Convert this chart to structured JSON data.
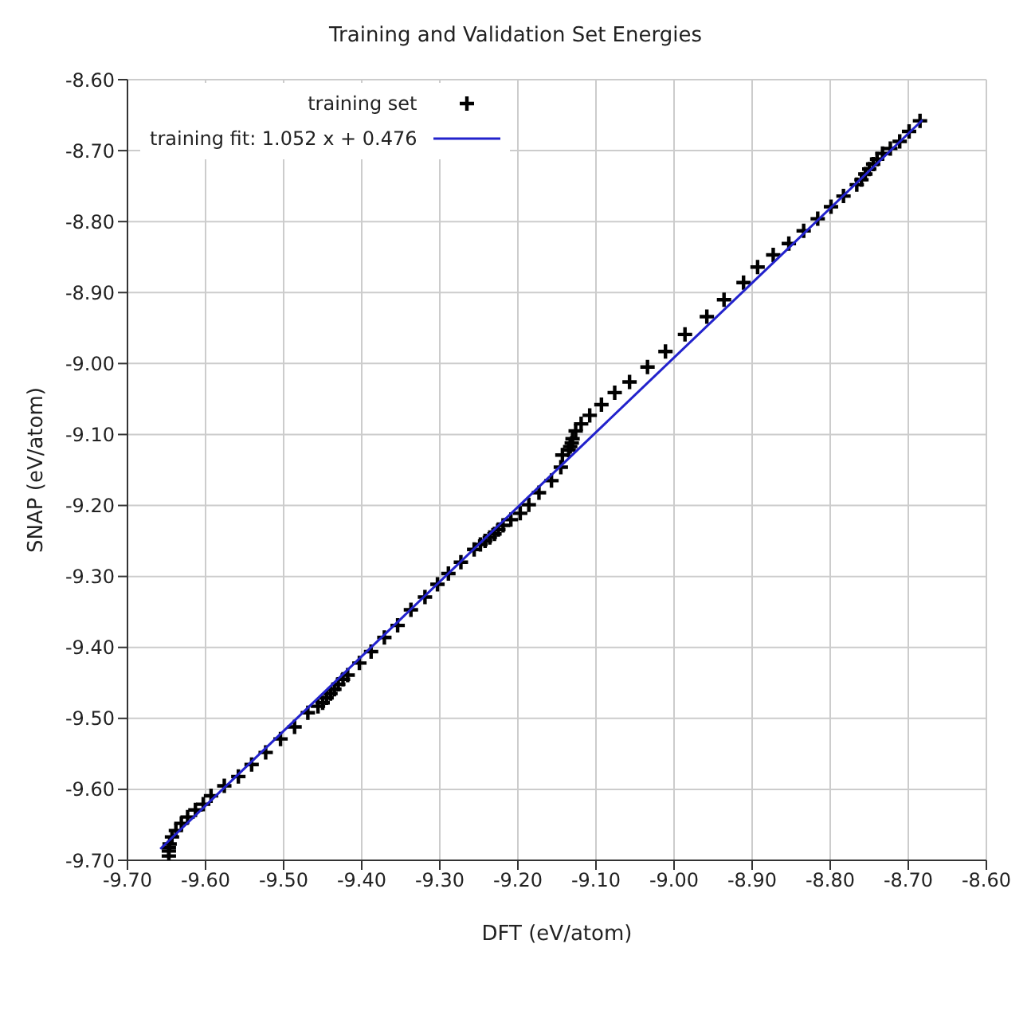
{
  "chart_data": {
    "type": "scatter",
    "title": "Training and Validation Set Energies",
    "xlabel": "DFT (eV/atom)",
    "ylabel": "SNAP (eV/atom)",
    "xlim": [
      -9.7,
      -8.6
    ],
    "ylim": [
      -9.7,
      -8.6
    ],
    "xticks": [
      {
        "value": -9.7,
        "label": "-9.70"
      },
      {
        "value": -9.6,
        "label": "-9.60"
      },
      {
        "value": -9.5,
        "label": "-9.50"
      },
      {
        "value": -9.4,
        "label": "-9.40"
      },
      {
        "value": -9.3,
        "label": "-9.30"
      },
      {
        "value": -9.2,
        "label": "-9.20"
      },
      {
        "value": -9.1,
        "label": "-9.10"
      },
      {
        "value": -9.0,
        "label": "-9.00"
      },
      {
        "value": -8.9,
        "label": "-8.90"
      },
      {
        "value": -8.8,
        "label": "-8.80"
      },
      {
        "value": -8.7,
        "label": "-8.70"
      },
      {
        "value": -8.6,
        "label": "-8.60"
      }
    ],
    "yticks": [
      {
        "value": -9.7,
        "label": "-9.70"
      },
      {
        "value": -9.6,
        "label": "-9.60"
      },
      {
        "value": -9.5,
        "label": "-9.50"
      },
      {
        "value": -9.4,
        "label": "-9.40"
      },
      {
        "value": -9.3,
        "label": "-9.30"
      },
      {
        "value": -9.2,
        "label": "-9.20"
      },
      {
        "value": -9.1,
        "label": "-9.10"
      },
      {
        "value": -9.0,
        "label": "-9.00"
      },
      {
        "value": -8.9,
        "label": "-8.90"
      },
      {
        "value": -8.8,
        "label": "-8.80"
      },
      {
        "value": -8.7,
        "label": "-8.70"
      },
      {
        "value": -8.6,
        "label": "-8.60"
      }
    ],
    "grid": true,
    "legend": "top left",
    "series": [
      {
        "name": "training set",
        "type": "scatter",
        "marker": "cross",
        "color": "#000000",
        "x": [
          -9.647,
          -9.647,
          -9.647,
          -9.646,
          -9.643,
          -9.638,
          -9.631,
          -9.623,
          -9.613,
          -9.603,
          -9.593,
          -9.576,
          -9.558,
          -9.541,
          -9.523,
          -9.504,
          -9.486,
          -9.469,
          -9.456,
          -9.45,
          -9.445,
          -9.44,
          -9.435,
          -9.43,
          -9.424,
          -9.418,
          -9.403,
          -9.388,
          -9.371,
          -9.354,
          -9.337,
          -9.319,
          -9.303,
          -9.289,
          -9.273,
          -9.256,
          -9.248,
          -9.242,
          -9.236,
          -9.23,
          -9.225,
          -9.219,
          -9.209,
          -9.197,
          -9.186,
          -9.173,
          -9.157,
          -9.145,
          -9.143,
          -9.135,
          -9.133,
          -9.131,
          -9.13,
          -9.126,
          -9.119,
          -9.108,
          -9.093,
          -9.076,
          -9.057,
          -9.034,
          -9.011,
          -8.986,
          -8.958,
          -8.936,
          -8.911,
          -8.893,
          -8.873,
          -8.853,
          -8.834,
          -8.816,
          -8.799,
          -8.783,
          -8.766,
          -8.76,
          -8.755,
          -8.75,
          -8.745,
          -8.74,
          -8.733,
          -8.723,
          -8.711,
          -8.699,
          -8.685
        ],
        "values": [
          -9.694,
          -9.687,
          -9.682,
          -9.677,
          -9.667,
          -9.658,
          -9.648,
          -9.639,
          -9.629,
          -9.621,
          -9.609,
          -9.595,
          -9.582,
          -9.565,
          -9.548,
          -9.529,
          -9.512,
          -9.492,
          -9.483,
          -9.478,
          -9.471,
          -9.465,
          -9.459,
          -9.452,
          -9.445,
          -9.439,
          -9.422,
          -9.406,
          -9.386,
          -9.369,
          -9.347,
          -9.329,
          -9.311,
          -9.296,
          -9.28,
          -9.262,
          -9.255,
          -9.25,
          -9.245,
          -9.24,
          -9.234,
          -9.228,
          -9.22,
          -9.211,
          -9.199,
          -9.182,
          -9.165,
          -9.146,
          -9.129,
          -9.122,
          -9.117,
          -9.112,
          -9.106,
          -9.095,
          -9.085,
          -9.073,
          -9.058,
          -9.041,
          -9.026,
          -9.005,
          -8.983,
          -8.959,
          -8.934,
          -8.91,
          -8.886,
          -8.864,
          -8.847,
          -8.831,
          -8.813,
          -8.796,
          -8.779,
          -8.764,
          -8.748,
          -8.741,
          -8.733,
          -8.726,
          -8.719,
          -8.712,
          -8.704,
          -8.697,
          -8.687,
          -8.673,
          -8.658
        ]
      },
      {
        "name": "training fit: 1.052 x + 0.476",
        "type": "line",
        "marker": "none",
        "line_style": "solid",
        "color": "#2222cc",
        "x": [
          -9.658,
          -8.682
        ],
        "values": [
          -9.684,
          -8.657
        ]
      }
    ]
  }
}
